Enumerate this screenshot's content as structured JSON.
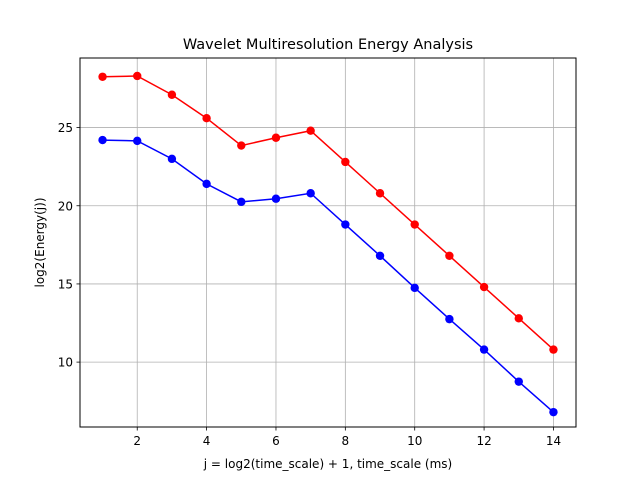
{
  "chart_data": {
    "type": "line",
    "title": "Wavelet Multiresolution Energy Analysis",
    "xlabel": "j = log2(time_scale) + 1, time_scale (ms)",
    "ylabel": "log2(Energy(j))",
    "xlim": [
      0.35,
      14.65
    ],
    "ylim": [
      5.85,
      29.45
    ],
    "xticks": [
      2,
      4,
      6,
      8,
      10,
      12,
      14
    ],
    "yticks": [
      10,
      15,
      20,
      25
    ],
    "grid": true,
    "legend": "none",
    "x": [
      1,
      2,
      3,
      4,
      5,
      6,
      7,
      8,
      9,
      10,
      11,
      12,
      13,
      14
    ],
    "series": [
      {
        "color": "#ff0000",
        "marker": "circle",
        "values": [
          28.25,
          28.3,
          27.1,
          25.6,
          23.85,
          24.35,
          24.8,
          22.8,
          20.8,
          18.8,
          16.8,
          14.8,
          12.8,
          10.8
        ]
      },
      {
        "color": "#0000ff",
        "marker": "circle",
        "values": [
          24.2,
          24.15,
          23.0,
          21.4,
          20.25,
          20.45,
          20.8,
          18.8,
          16.8,
          14.75,
          12.75,
          10.8,
          8.75,
          6.8
        ]
      }
    ]
  }
}
